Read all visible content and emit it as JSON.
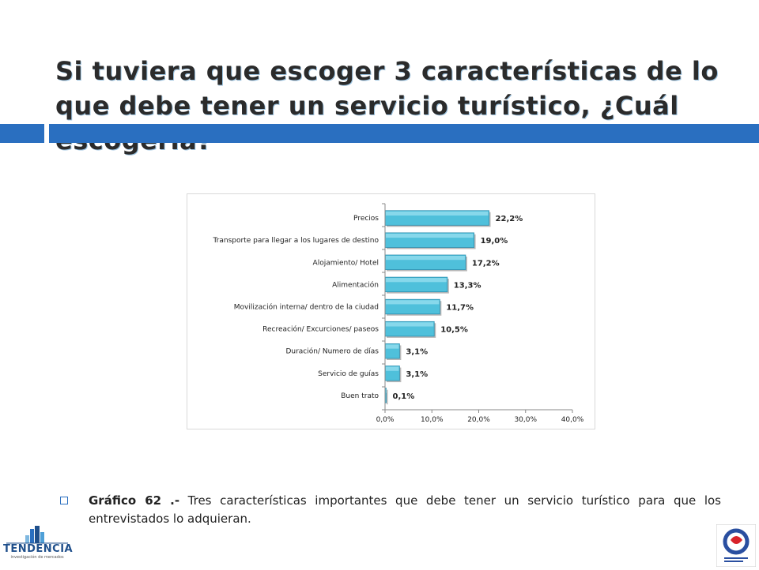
{
  "header": {
    "title": "Si tuviera que escoger 3 características de lo que debe tener un servicio turístico, ¿Cuál escogería?"
  },
  "colors": {
    "accent": "#2a6fc0",
    "bar_fill": "#4fc0db",
    "bar_edge": "#2b8fb0"
  },
  "chart_data": {
    "type": "bar",
    "orientation": "horizontal",
    "categories": [
      "Precios",
      "Transporte para llegar a los lugares de destino",
      "Alojamiento/ Hotel",
      "Alimentación",
      "Movilización interna/ dentro de la ciudad",
      "Recreación/ Excurciones/  paseos",
      "Duración/ Numero de días",
      "Servicio de guías",
      "Buen trato"
    ],
    "values": [
      22.2,
      19.0,
      17.2,
      13.3,
      11.7,
      10.5,
      3.1,
      3.1,
      0.1
    ],
    "value_labels": [
      "22,2%",
      "19,0%",
      "17,2%",
      "13,3%",
      "11,7%",
      "10,5%",
      "3,1%",
      "3,1%",
      "0,1%"
    ],
    "xlim": [
      0,
      40
    ],
    "xticks": [
      0,
      10,
      20,
      30,
      40
    ],
    "xtick_labels": [
      "0,0%",
      "10,0%",
      "20,0%",
      "30,0%",
      "40,0%"
    ],
    "grid": false,
    "legend": "none"
  },
  "caption": {
    "label": "Gráfico 62 .-",
    "text": " Tres características importantes que debe tener un servicio turístico para que los entrevistados lo adquieran."
  },
  "logos": {
    "left_name": "TENDENCIA",
    "left_tagline": "investigación de mercados"
  }
}
